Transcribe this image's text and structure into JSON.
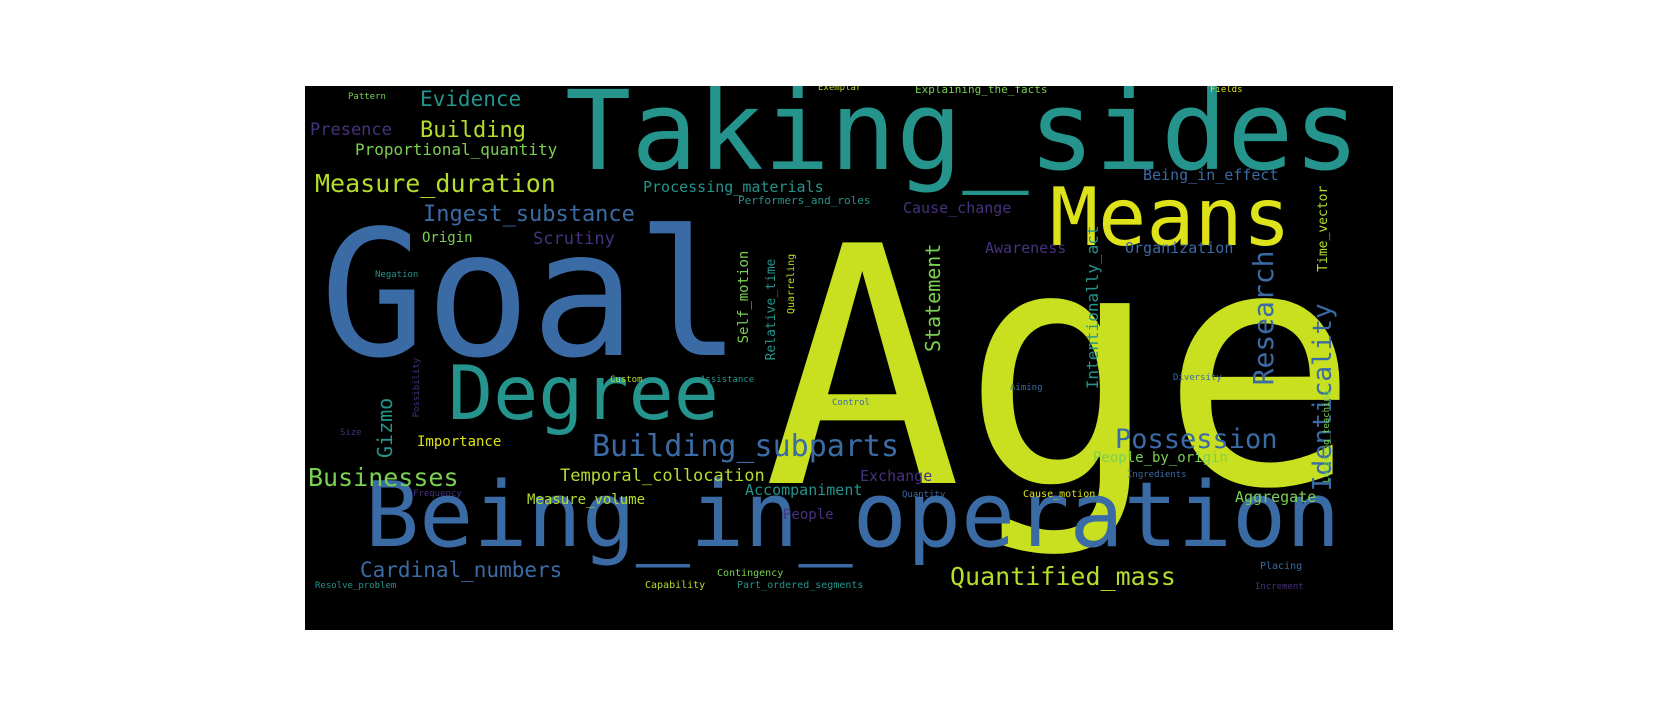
{
  "words": [
    {
      "text": "Age",
      "color": "#c8e020",
      "size": 1.0,
      "rotate": 0
    },
    {
      "text": "Goal",
      "color": "#3b6ba5",
      "size": 0.78,
      "rotate": 0
    },
    {
      "text": "Taking_sides",
      "color": "#24948c",
      "size": 0.36,
      "rotate": 0
    },
    {
      "text": "Being_in_operation",
      "color": "#3b6ba5",
      "size": 0.32,
      "rotate": 0
    },
    {
      "text": "Means",
      "color": "#dde318",
      "size": 0.3,
      "rotate": 0
    },
    {
      "text": "Degree",
      "color": "#24948c",
      "size": 0.3,
      "rotate": 0
    },
    {
      "text": "Building_subparts",
      "color": "#3b6ba5",
      "size": 0.14,
      "rotate": 0
    },
    {
      "text": "Possession",
      "color": "#3b6ba5",
      "size": 0.11,
      "rotate": 0
    },
    {
      "text": "Research",
      "color": "#3b6ba5",
      "size": 0.11,
      "rotate": 270
    },
    {
      "text": "Measure_duration",
      "color": "#b4dd2c",
      "size": 0.1,
      "rotate": 0
    },
    {
      "text": "Quantified_mass",
      "color": "#b4dd2c",
      "size": 0.1,
      "rotate": 0
    },
    {
      "text": "Businesses",
      "color": "#7ad151",
      "size": 0.1,
      "rotate": 0
    },
    {
      "text": "Identicality",
      "color": "#3b6ba5",
      "size": 0.1,
      "rotate": 270
    },
    {
      "text": "Building",
      "color": "#b4dd2c",
      "size": 0.09,
      "rotate": 0
    },
    {
      "text": "Evidence",
      "color": "#24948c",
      "size": 0.09,
      "rotate": 0
    },
    {
      "text": "Ingest_substance",
      "color": "#3b6ba5",
      "size": 0.08,
      "rotate": 0
    },
    {
      "text": "Cardinal_numbers",
      "color": "#3b6ba5",
      "size": 0.08,
      "rotate": 0
    },
    {
      "text": "Statement",
      "color": "#7ad151",
      "size": 0.08,
      "rotate": 270
    },
    {
      "text": "Gizmo",
      "color": "#24948c",
      "size": 0.08,
      "rotate": 270
    },
    {
      "text": "Scrutiny",
      "color": "#46327e",
      "size": 0.07,
      "rotate": 0
    },
    {
      "text": "Presence",
      "color": "#46327e",
      "size": 0.07,
      "rotate": 0
    },
    {
      "text": "Temporal_collocation",
      "color": "#b4dd2c",
      "size": 0.07,
      "rotate": 0
    },
    {
      "text": "Proportional_quantity",
      "color": "#7ad151",
      "size": 0.065,
      "rotate": 0
    },
    {
      "text": "Intentionally_act",
      "color": "#24948c",
      "size": 0.065,
      "rotate": 270
    },
    {
      "text": "Processing_materials",
      "color": "#24948c",
      "size": 0.06,
      "rotate": 0
    },
    {
      "text": "Being_in_effect",
      "color": "#3b6ba5",
      "size": 0.06,
      "rotate": 0
    },
    {
      "text": "Organization",
      "color": "#3b6ba5",
      "size": 0.06,
      "rotate": 0
    },
    {
      "text": "Awareness",
      "color": "#46327e",
      "size": 0.06,
      "rotate": 0
    },
    {
      "text": "Cause_change",
      "color": "#46327e",
      "size": 0.06,
      "rotate": 0
    },
    {
      "text": "Origin",
      "color": "#7ad151",
      "size": 0.055,
      "rotate": 0
    },
    {
      "text": "Exchange",
      "color": "#46327e",
      "size": 0.06,
      "rotate": 0
    },
    {
      "text": "People_by_origin",
      "color": "#7ad151",
      "size": 0.055,
      "rotate": 0
    },
    {
      "text": "Aggregate",
      "color": "#7ad151",
      "size": 0.06,
      "rotate": 0
    },
    {
      "text": "Accompaniment",
      "color": "#24948c",
      "size": 0.06,
      "rotate": 0
    },
    {
      "text": "Measure_volume",
      "color": "#b4dd2c",
      "size": 0.055,
      "rotate": 0
    },
    {
      "text": "Importance",
      "color": "#dde318",
      "size": 0.055,
      "rotate": 0
    },
    {
      "text": "People",
      "color": "#46327e",
      "size": 0.055,
      "rotate": 0
    },
    {
      "text": "Self_motion",
      "color": "#7ad151",
      "size": 0.055,
      "rotate": 270
    },
    {
      "text": "Relative_time",
      "color": "#24948c",
      "size": 0.05,
      "rotate": 270
    },
    {
      "text": "Time_vector",
      "color": "#b4dd2c",
      "size": 0.05,
      "rotate": 270
    },
    {
      "text": "Performers_and_roles",
      "color": "#24948c",
      "size": 0.04,
      "rotate": 0
    },
    {
      "text": "Explaining_the_facts",
      "color": "#7ad151",
      "size": 0.04,
      "rotate": 0
    },
    {
      "text": "Quarreling",
      "color": "#b4dd2c",
      "size": 0.035,
      "rotate": 270
    },
    {
      "text": "Contingency",
      "color": "#7ad151",
      "size": 0.035,
      "rotate": 0
    },
    {
      "text": "Capability",
      "color": "#b4dd2c",
      "size": 0.035,
      "rotate": 0
    },
    {
      "text": "Part_ordered_segments",
      "color": "#24948c",
      "size": 0.035,
      "rotate": 0
    },
    {
      "text": "Cause_motion",
      "color": "#dde318",
      "size": 0.035,
      "rotate": 0
    },
    {
      "text": "Placing",
      "color": "#3b6ba5",
      "size": 0.035,
      "rotate": 0
    },
    {
      "text": "Resolve_problem",
      "color": "#24948c",
      "size": 0.03,
      "rotate": 0
    },
    {
      "text": "Increment",
      "color": "#46327e",
      "size": 0.03,
      "rotate": 0
    },
    {
      "text": "Frequency",
      "color": "#46327e",
      "size": 0.03,
      "rotate": 0
    },
    {
      "text": "Quantity",
      "color": "#3b6ba5",
      "size": 0.03,
      "rotate": 0
    },
    {
      "text": "Ingredients",
      "color": "#3b6ba5",
      "size": 0.03,
      "rotate": 0
    },
    {
      "text": "Assistance",
      "color": "#24948c",
      "size": 0.03,
      "rotate": 0
    },
    {
      "text": "Custom",
      "color": "#b4dd2c",
      "size": 0.03,
      "rotate": 0
    },
    {
      "text": "Control",
      "color": "#3b6ba5",
      "size": 0.03,
      "rotate": 0
    },
    {
      "text": "Aiming",
      "color": "#3b6ba5",
      "size": 0.03,
      "rotate": 0
    },
    {
      "text": "Diversity",
      "color": "#3b6ba5",
      "size": 0.03,
      "rotate": 0
    },
    {
      "text": "Locating_teaching",
      "color": "#7ad151",
      "size": 0.03,
      "rotate": 270
    },
    {
      "text": "Possibility",
      "color": "#46327e",
      "size": 0.03,
      "rotate": 270
    },
    {
      "text": "Negation",
      "color": "#24948c",
      "size": 0.03,
      "rotate": 0
    },
    {
      "text": "Size",
      "color": "#46327e",
      "size": 0.03,
      "rotate": 0
    },
    {
      "text": "Pattern",
      "color": "#7ad151",
      "size": 0.03,
      "rotate": 0
    },
    {
      "text": "Exemplar",
      "color": "#b4dd2c",
      "size": 0.03,
      "rotate": 0
    },
    {
      "text": "Fields",
      "color": "#dde318",
      "size": 0.03,
      "rotate": 0
    }
  ]
}
